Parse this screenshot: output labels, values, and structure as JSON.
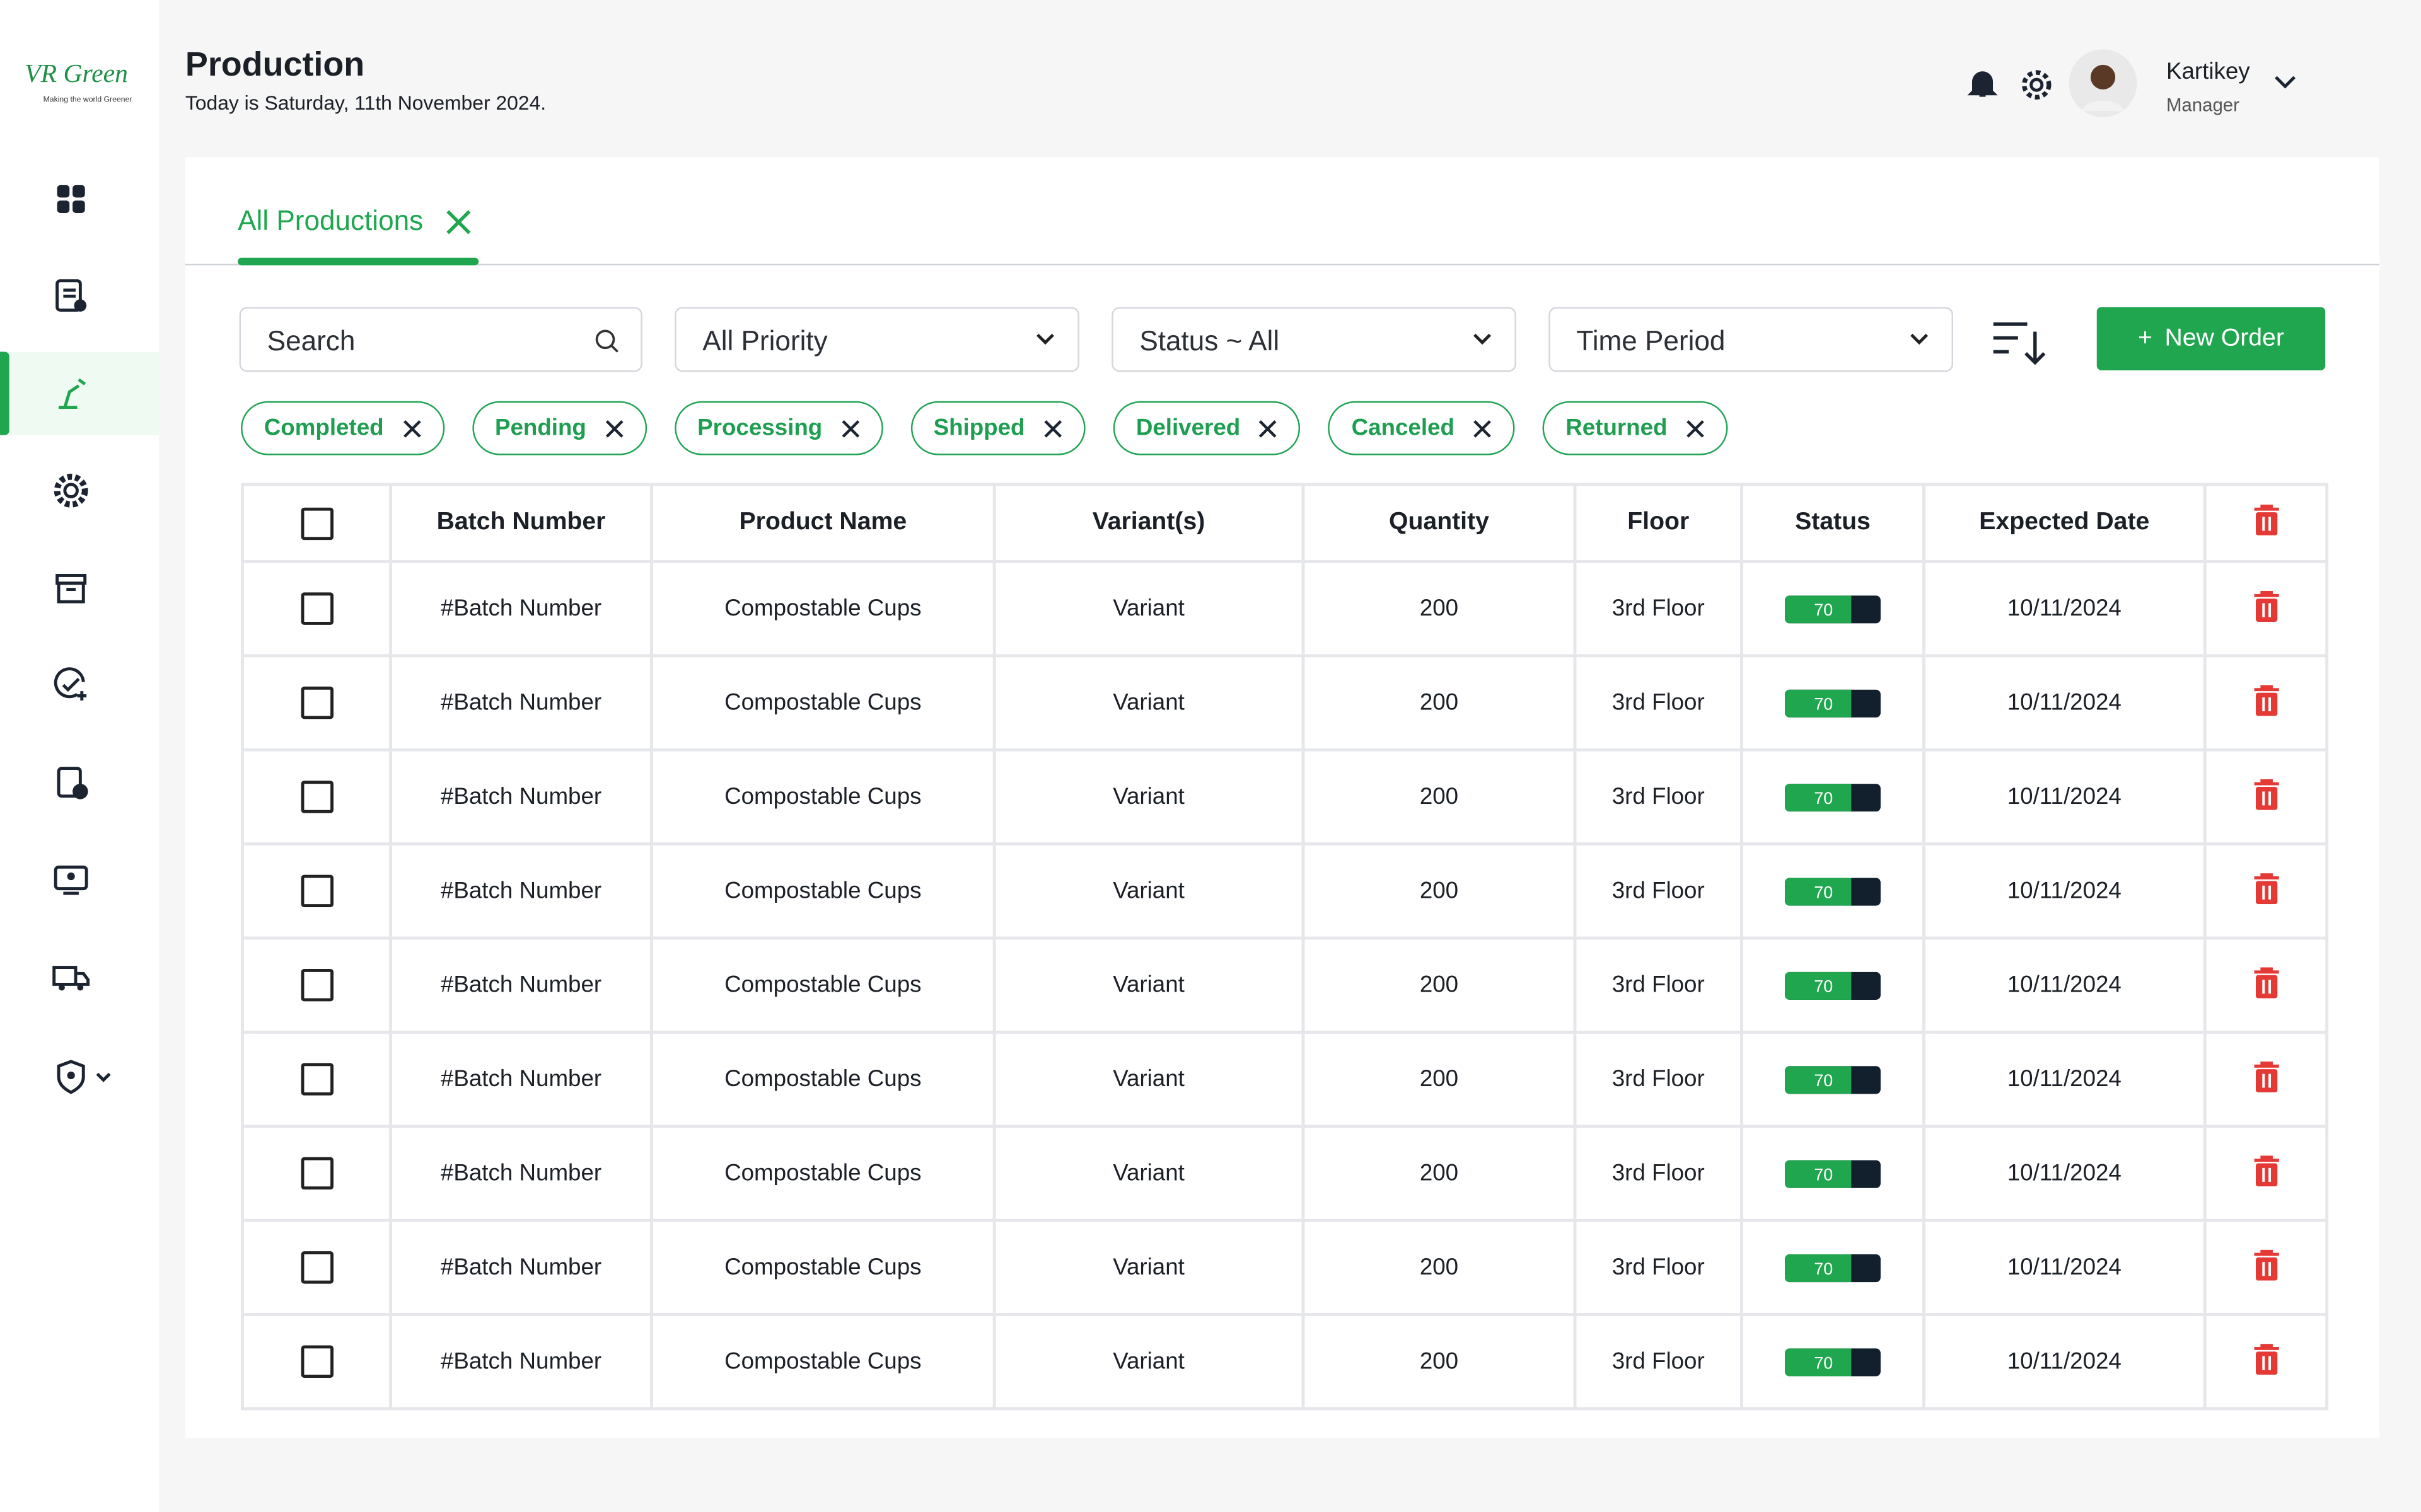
{
  "sidebar": {
    "logo": "VR Green",
    "tagline": "Making the world Greener"
  },
  "header": {
    "title": "Production",
    "subtitle": "Today is Saturday, 11th November 2024.",
    "user": {
      "name": "Kartikey",
      "role": "Manager"
    }
  },
  "tabs": [
    {
      "label": "All Productions"
    }
  ],
  "filters": {
    "search": "Search",
    "priority": "All Priority",
    "status": "Status ~ All",
    "period": "Time Period",
    "new_order": "New Order"
  },
  "chips": [
    "Completed",
    "Pending",
    "Processing",
    "Shipped",
    "Delivered",
    "Canceled",
    "Returned"
  ],
  "table": {
    "columns": [
      "Batch Number",
      "Product Name",
      "Variant(s)",
      "Quantity",
      "Floor",
      "Status",
      "Expected Date"
    ],
    "rows": [
      [
        "#Batch Number",
        "Compostable Cups",
        "Variant",
        200,
        "3rd Floor",
        70,
        "10/11/2024"
      ],
      [
        "#Batch Number",
        "Compostable Cups",
        "Variant",
        200,
        "3rd Floor",
        70,
        "10/11/2024"
      ],
      [
        "#Batch Number",
        "Compostable Cups",
        "Variant",
        200,
        "3rd Floor",
        70,
        "10/11/2024"
      ],
      [
        "#Batch Number",
        "Compostable Cups",
        "Variant",
        200,
        "3rd Floor",
        70,
        "10/11/2024"
      ],
      [
        "#Batch Number",
        "Compostable Cups",
        "Variant",
        200,
        "3rd Floor",
        70,
        "10/11/2024"
      ],
      [
        "#Batch Number",
        "Compostable Cups",
        "Variant",
        200,
        "3rd Floor",
        70,
        "10/11/2024"
      ],
      [
        "#Batch Number",
        "Compostable Cups",
        "Variant",
        200,
        "3rd Floor",
        70,
        "10/11/2024"
      ],
      [
        "#Batch Number",
        "Compostable Cups",
        "Variant",
        200,
        "3rd Floor",
        70,
        "10/11/2024"
      ],
      [
        "#Batch Number",
        "Compostable Cups",
        "Variant",
        200,
        "3rd Floor",
        70,
        "10/11/2024"
      ]
    ]
  }
}
